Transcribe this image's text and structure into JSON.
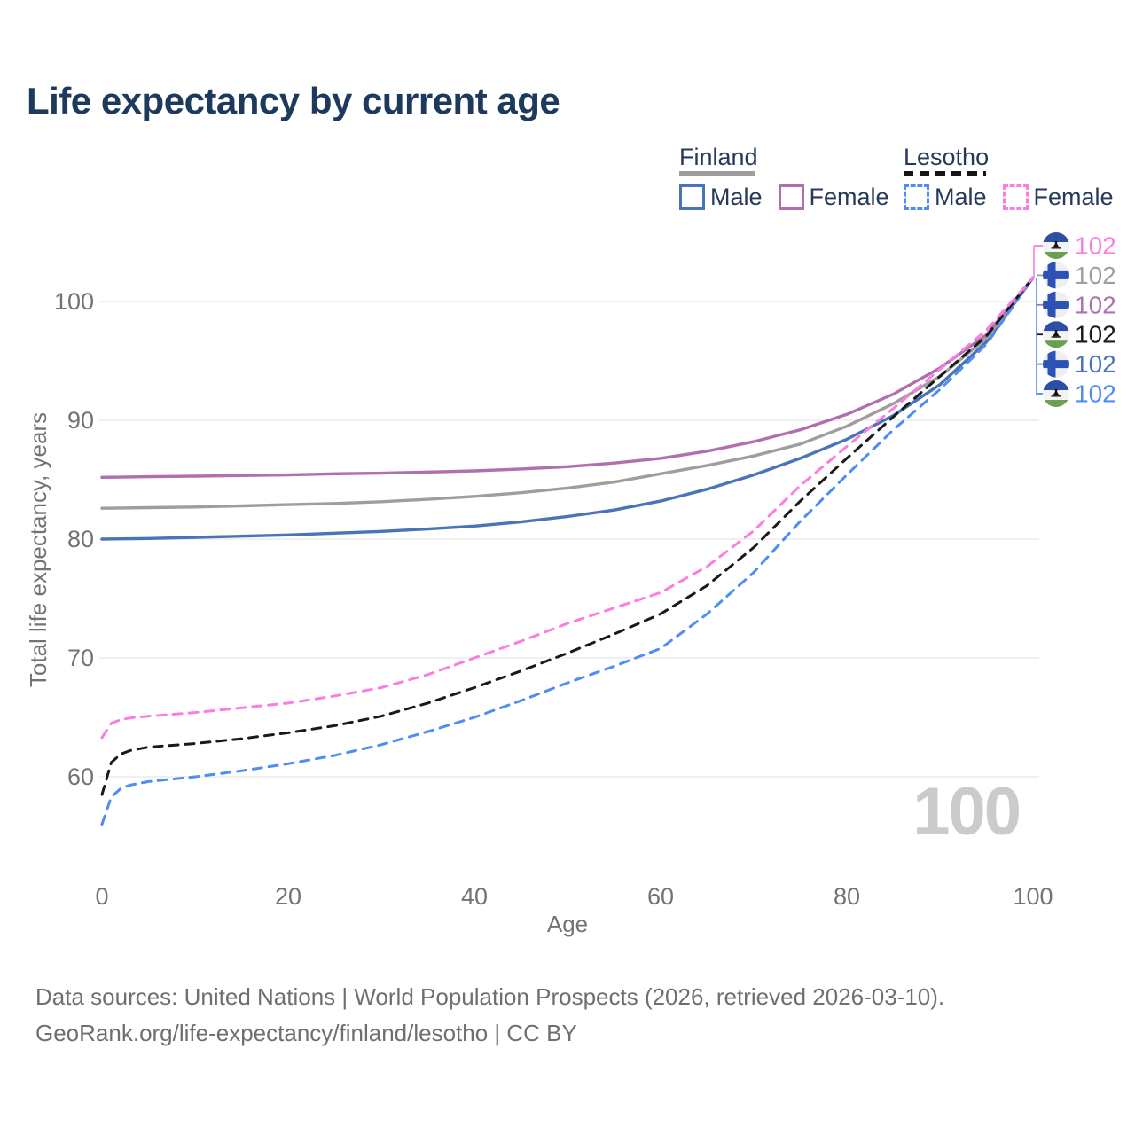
{
  "title": "Life expectancy by current age",
  "legend": {
    "groups": [
      {
        "label": "Finland",
        "line_style": "solid",
        "underline_color": "#9e9e9e",
        "items": [
          {
            "label": "Male",
            "color": "#4a74b9"
          },
          {
            "label": "Female",
            "color": "#b070ae"
          }
        ]
      },
      {
        "label": "Lesotho",
        "line_style": "dashed",
        "underline_color": "#151515",
        "items": [
          {
            "label": "Male",
            "color": "#4d8df5"
          },
          {
            "label": "Female",
            "color": "#fc7de0"
          }
        ]
      }
    ]
  },
  "watermark": {
    "text": "100"
  },
  "footer": {
    "line1": "Data sources: United Nations | World Population Prospects (2026, retrieved 2026-03-10).",
    "line2": "GeoRank.org/life-expectancy/finland/lesotho | CC BY"
  },
  "end_labels": [
    {
      "flag": "lesotho",
      "series": "Lesotho Female",
      "value": "102",
      "color": "#fc7de0"
    },
    {
      "flag": "finland",
      "series": "Finland",
      "value": "102",
      "color": "#9e9e9e"
    },
    {
      "flag": "finland",
      "series": "Finland Female",
      "value": "102",
      "color": "#b070ae"
    },
    {
      "flag": "lesotho",
      "series": "Lesotho",
      "value": "102",
      "color": "#1a1a1a"
    },
    {
      "flag": "finland",
      "series": "Finland Male",
      "value": "102",
      "color": "#4a74b9"
    },
    {
      "flag": "lesotho",
      "series": "Lesotho Male",
      "value": "102",
      "color": "#4d8df5"
    }
  ],
  "colors": {
    "title": "#1d3a5c",
    "axis_text": "#737373",
    "grid": "#ececec",
    "watermark": "#cbcbcb",
    "footer": "#6f6f6f",
    "finland_male": "#4a74b9",
    "finland_female": "#b070ae",
    "finland_all": "#9e9e9e",
    "lesotho_male": "#4d8df5",
    "lesotho_female": "#fc7de0",
    "lesotho_all": "#1a1a1a"
  },
  "chart_data": {
    "type": "line",
    "title": "Life expectancy by current age",
    "xlabel": "Age",
    "ylabel": "Total life expectancy, years",
    "xlim": [
      0,
      100
    ],
    "ylim": [
      55,
      103
    ],
    "x_ticks": [
      0,
      20,
      40,
      60,
      80,
      100
    ],
    "y_ticks": [
      60,
      70,
      80,
      90,
      100
    ],
    "grid": "horizontal",
    "legend_position": "top-right",
    "series": [
      {
        "name": "Finland Male",
        "country": "Finland",
        "sex": "Male",
        "line_style": "solid",
        "color": "#4a74b9",
        "end_label": "102",
        "points": [
          [
            0,
            80.0
          ],
          [
            5,
            80.05
          ],
          [
            10,
            80.15
          ],
          [
            15,
            80.25
          ],
          [
            20,
            80.35
          ],
          [
            25,
            80.5
          ],
          [
            30,
            80.65
          ],
          [
            35,
            80.85
          ],
          [
            40,
            81.1
          ],
          [
            45,
            81.45
          ],
          [
            50,
            81.9
          ],
          [
            55,
            82.45
          ],
          [
            60,
            83.2
          ],
          [
            65,
            84.2
          ],
          [
            70,
            85.4
          ],
          [
            75,
            86.8
          ],
          [
            80,
            88.4
          ],
          [
            85,
            90.4
          ],
          [
            90,
            93.0
          ],
          [
            95,
            96.6
          ],
          [
            100,
            102
          ]
        ]
      },
      {
        "name": "Finland",
        "country": "Finland",
        "sex": "Both",
        "line_style": "solid",
        "color": "#9e9e9e",
        "end_label": "102",
        "points": [
          [
            0,
            82.6
          ],
          [
            5,
            82.65
          ],
          [
            10,
            82.7
          ],
          [
            15,
            82.8
          ],
          [
            20,
            82.9
          ],
          [
            25,
            83.0
          ],
          [
            30,
            83.15
          ],
          [
            35,
            83.35
          ],
          [
            40,
            83.6
          ],
          [
            45,
            83.9
          ],
          [
            50,
            84.3
          ],
          [
            55,
            84.8
          ],
          [
            60,
            85.5
          ],
          [
            65,
            86.2
          ],
          [
            70,
            87.0
          ],
          [
            75,
            88.0
          ],
          [
            80,
            89.5
          ],
          [
            85,
            91.4
          ],
          [
            90,
            93.7
          ],
          [
            95,
            96.9
          ],
          [
            100,
            102
          ]
        ]
      },
      {
        "name": "Finland Female",
        "country": "Finland",
        "sex": "Female",
        "line_style": "solid",
        "color": "#b070ae",
        "end_label": "102",
        "points": [
          [
            0,
            85.2
          ],
          [
            5,
            85.25
          ],
          [
            10,
            85.3
          ],
          [
            15,
            85.35
          ],
          [
            20,
            85.4
          ],
          [
            25,
            85.5
          ],
          [
            30,
            85.55
          ],
          [
            35,
            85.65
          ],
          [
            40,
            85.75
          ],
          [
            45,
            85.9
          ],
          [
            50,
            86.1
          ],
          [
            55,
            86.4
          ],
          [
            60,
            86.8
          ],
          [
            65,
            87.4
          ],
          [
            70,
            88.2
          ],
          [
            75,
            89.2
          ],
          [
            80,
            90.5
          ],
          [
            85,
            92.2
          ],
          [
            90,
            94.4
          ],
          [
            95,
            97.2
          ],
          [
            100,
            102
          ]
        ]
      },
      {
        "name": "Lesotho Male",
        "country": "Lesotho",
        "sex": "Male",
        "line_style": "dashed",
        "color": "#4d8df5",
        "end_label": "102",
        "points": [
          [
            0,
            56.0
          ],
          [
            1,
            58.3
          ],
          [
            2,
            59.0
          ],
          [
            3,
            59.3
          ],
          [
            5,
            59.6
          ],
          [
            10,
            60.0
          ],
          [
            15,
            60.5
          ],
          [
            20,
            61.1
          ],
          [
            25,
            61.8
          ],
          [
            30,
            62.7
          ],
          [
            35,
            63.8
          ],
          [
            40,
            65.0
          ],
          [
            45,
            66.4
          ],
          [
            50,
            67.9
          ],
          [
            55,
            69.3
          ],
          [
            60,
            70.8
          ],
          [
            65,
            73.7
          ],
          [
            70,
            77.2
          ],
          [
            75,
            81.5
          ],
          [
            80,
            85.4
          ],
          [
            85,
            89.2
          ],
          [
            90,
            92.6
          ],
          [
            95,
            96.4
          ],
          [
            100,
            102
          ]
        ]
      },
      {
        "name": "Lesotho",
        "country": "Lesotho",
        "sex": "Both",
        "line_style": "dashed",
        "color": "#1a1a1a",
        "end_label": "102",
        "points": [
          [
            0,
            58.5
          ],
          [
            1,
            61.2
          ],
          [
            2,
            61.9
          ],
          [
            3,
            62.2
          ],
          [
            5,
            62.5
          ],
          [
            10,
            62.8
          ],
          [
            15,
            63.2
          ],
          [
            20,
            63.7
          ],
          [
            25,
            64.3
          ],
          [
            30,
            65.1
          ],
          [
            35,
            66.2
          ],
          [
            40,
            67.5
          ],
          [
            45,
            68.9
          ],
          [
            50,
            70.4
          ],
          [
            55,
            72.0
          ],
          [
            60,
            73.7
          ],
          [
            65,
            76.1
          ],
          [
            70,
            79.3
          ],
          [
            75,
            83.2
          ],
          [
            80,
            86.8
          ],
          [
            85,
            90.3
          ],
          [
            90,
            93.7
          ],
          [
            95,
            97.1
          ],
          [
            100,
            102
          ]
        ]
      },
      {
        "name": "Lesotho Female",
        "country": "Lesotho",
        "sex": "Female",
        "line_style": "dashed",
        "color": "#fc7de0",
        "end_label": "102",
        "points": [
          [
            0,
            63.3
          ],
          [
            1,
            64.5
          ],
          [
            2,
            64.8
          ],
          [
            3,
            64.95
          ],
          [
            5,
            65.1
          ],
          [
            10,
            65.4
          ],
          [
            15,
            65.8
          ],
          [
            20,
            66.2
          ],
          [
            25,
            66.8
          ],
          [
            30,
            67.5
          ],
          [
            35,
            68.6
          ],
          [
            40,
            70.0
          ],
          [
            45,
            71.4
          ],
          [
            50,
            72.9
          ],
          [
            55,
            74.2
          ],
          [
            60,
            75.5
          ],
          [
            65,
            77.7
          ],
          [
            70,
            80.7
          ],
          [
            75,
            84.5
          ],
          [
            80,
            87.8
          ],
          [
            85,
            91.0
          ],
          [
            90,
            94.3
          ],
          [
            95,
            97.6
          ],
          [
            100,
            102
          ]
        ]
      }
    ]
  }
}
